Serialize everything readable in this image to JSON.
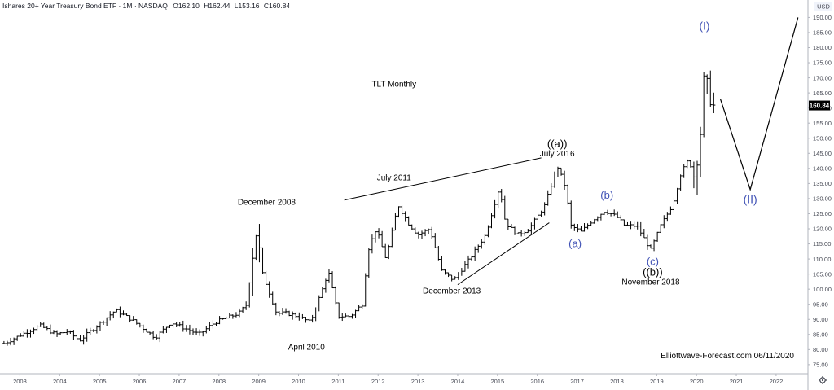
{
  "header": {
    "symbol": "Ishares 20+ Year Treasury Bond ETF · 1M · NASDAQ",
    "open": "O162.10",
    "high": "H162.44",
    "low": "L153.16",
    "close": "C160.84"
  },
  "currency_label": "USD",
  "last_price_label": "160.84",
  "settings_icon": "gear-icon",
  "colors": {
    "bars": "#000000",
    "wave_blue": "#3f51b5",
    "axis_text": "#434651",
    "price_tag_bg": "#000000",
    "price_tag_text": "#ffffff"
  },
  "chart_data": {
    "type": "ohlc",
    "title": "TLT Monthly",
    "watermark": "Elliottwave-Forecast.com 06/11/2020",
    "x_ticks": [
      "2003",
      "2004",
      "2005",
      "2006",
      "2007",
      "2008",
      "2009",
      "2010",
      "2011",
      "2012",
      "2013",
      "2014",
      "2015",
      "2016",
      "2017",
      "2018",
      "2019",
      "2020",
      "2021",
      "2022"
    ],
    "y_ticks": [
      75,
      80,
      85,
      90,
      95,
      100,
      105,
      110,
      115,
      120,
      125,
      130,
      135,
      140,
      145,
      150,
      155,
      160,
      165,
      170,
      175,
      180,
      185,
      190
    ],
    "xlim": [
      2002.5,
      2022.8
    ],
    "ylim": [
      72,
      192
    ],
    "key_points": [
      {
        "x": 2002.6,
        "y": 82
      },
      {
        "x": 2003.5,
        "y": 88
      },
      {
        "x": 2003.9,
        "y": 85
      },
      {
        "x": 2004.2,
        "y": 86
      },
      {
        "x": 2004.5,
        "y": 83
      },
      {
        "x": 2005.4,
        "y": 93
      },
      {
        "x": 2005.8,
        "y": 90
      },
      {
        "x": 2006.4,
        "y": 84
      },
      {
        "x": 2006.8,
        "y": 89
      },
      {
        "x": 2007.5,
        "y": 85
      },
      {
        "x": 2007.9,
        "y": 89
      },
      {
        "x": 2008.5,
        "y": 92
      },
      {
        "x": 2008.7,
        "y": 95
      },
      {
        "x": 2008.92,
        "y": 120
      },
      {
        "x": 2009.1,
        "y": 105
      },
      {
        "x": 2009.45,
        "y": 92
      },
      {
        "x": 2009.7,
        "y": 92
      },
      {
        "x": 2010.0,
        "y": 91
      },
      {
        "x": 2010.3,
        "y": 89
      },
      {
        "x": 2010.6,
        "y": 100
      },
      {
        "x": 2010.75,
        "y": 106
      },
      {
        "x": 2011.0,
        "y": 91
      },
      {
        "x": 2011.3,
        "y": 91
      },
      {
        "x": 2011.6,
        "y": 95
      },
      {
        "x": 2011.75,
        "y": 113
      },
      {
        "x": 2011.95,
        "y": 120
      },
      {
        "x": 2012.2,
        "y": 110
      },
      {
        "x": 2012.5,
        "y": 128
      },
      {
        "x": 2012.75,
        "y": 122
      },
      {
        "x": 2013.0,
        "y": 118
      },
      {
        "x": 2013.3,
        "y": 120
      },
      {
        "x": 2013.6,
        "y": 106
      },
      {
        "x": 2013.9,
        "y": 103
      },
      {
        "x": 2014.3,
        "y": 110
      },
      {
        "x": 2014.7,
        "y": 118
      },
      {
        "x": 2015.05,
        "y": 134
      },
      {
        "x": 2015.2,
        "y": 122
      },
      {
        "x": 2015.5,
        "y": 118
      },
      {
        "x": 2015.8,
        "y": 120
      },
      {
        "x": 2016.2,
        "y": 128
      },
      {
        "x": 2016.5,
        "y": 141
      },
      {
        "x": 2016.7,
        "y": 134
      },
      {
        "x": 2016.85,
        "y": 121
      },
      {
        "x": 2017.1,
        "y": 119
      },
      {
        "x": 2017.4,
        "y": 123
      },
      {
        "x": 2017.7,
        "y": 126
      },
      {
        "x": 2018.0,
        "y": 124
      },
      {
        "x": 2018.2,
        "y": 121
      },
      {
        "x": 2018.5,
        "y": 121
      },
      {
        "x": 2018.85,
        "y": 113
      },
      {
        "x": 2019.1,
        "y": 121
      },
      {
        "x": 2019.4,
        "y": 128
      },
      {
        "x": 2019.6,
        "y": 138
      },
      {
        "x": 2019.8,
        "y": 143
      },
      {
        "x": 2019.95,
        "y": 137
      },
      {
        "x": 2020.1,
        "y": 152
      },
      {
        "x": 2020.2,
        "y": 172
      },
      {
        "x": 2020.3,
        "y": 165
      },
      {
        "x": 2020.45,
        "y": 160
      }
    ],
    "trendlines": [
      {
        "from": [
          2011.15,
          129.5
        ],
        "to": [
          2016.1,
          143.5
        ]
      },
      {
        "from": [
          2014.0,
          101.5
        ],
        "to": [
          2016.3,
          122
        ]
      }
    ],
    "projection": [
      {
        "x": 2020.6,
        "y": 163
      },
      {
        "x": 2021.35,
        "y": 133
      },
      {
        "x": 2022.55,
        "y": 190
      }
    ],
    "annotations": [
      {
        "text": "December 2008",
        "x": 2009.2,
        "y": 128,
        "color": "#000000",
        "size": 10
      },
      {
        "text": "April 2010",
        "x": 2010.2,
        "y": 80,
        "color": "#000000",
        "size": 10
      },
      {
        "text": "July 2011",
        "x": 2012.4,
        "y": 136,
        "color": "#000000",
        "size": 10
      },
      {
        "text": "December 2013",
        "x": 2013.85,
        "y": 98.5,
        "color": "#000000",
        "size": 10
      },
      {
        "text": "((a))",
        "x": 2016.5,
        "y": 147,
        "color": "#000000",
        "size": 13
      },
      {
        "text": "July 2016",
        "x": 2016.5,
        "y": 144,
        "color": "#000000",
        "size": 10
      },
      {
        "text": "(a)",
        "x": 2016.95,
        "y": 114,
        "color": "#3f51b5",
        "size": 13
      },
      {
        "text": "(b)",
        "x": 2017.75,
        "y": 130,
        "color": "#3f51b5",
        "size": 13
      },
      {
        "text": "(c)",
        "x": 2018.9,
        "y": 108,
        "color": "#3f51b5",
        "size": 13
      },
      {
        "text": "((b))",
        "x": 2018.9,
        "y": 104.5,
        "color": "#000000",
        "size": 13
      },
      {
        "text": "November 2018",
        "x": 2018.85,
        "y": 101.5,
        "color": "#000000",
        "size": 10
      },
      {
        "text": "(I)",
        "x": 2020.2,
        "y": 186,
        "color": "#3f51b5",
        "size": 14
      },
      {
        "text": "(II)",
        "x": 2021.35,
        "y": 128.5,
        "color": "#3f51b5",
        "size": 14
      },
      {
        "text": "TLT Monthly",
        "x": 2012.4,
        "y": 167,
        "color": "#000000",
        "size": 10
      }
    ]
  }
}
